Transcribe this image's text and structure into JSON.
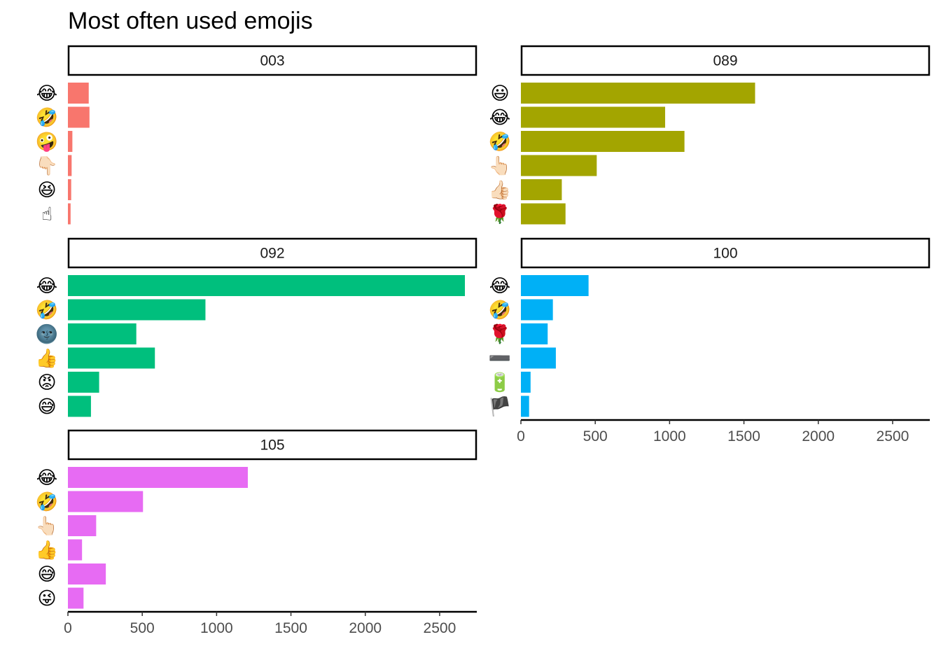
{
  "chart_data": {
    "type": "bar",
    "orientation": "horizontal",
    "title": "Most often used emojis",
    "xlabel": "",
    "ylabel": "",
    "xlim": [
      0,
      2750
    ],
    "x_ticks": [
      "0",
      "500",
      "1000",
      "1500",
      "2000",
      "2500"
    ],
    "grid": false,
    "legend": "none",
    "panels": [
      {
        "name": "003",
        "color": "#F8766D",
        "categories": [
          "😂",
          "🤣",
          "🤪",
          "👇🏻",
          "😆",
          "☝"
        ],
        "values": [
          140,
          145,
          30,
          25,
          22,
          18
        ]
      },
      {
        "name": "089",
        "color": "#A3A500",
        "categories": [
          "😃",
          "😂",
          "🤣",
          "👆🏻",
          "👍🏻",
          "🌹"
        ],
        "values": [
          1575,
          970,
          1100,
          510,
          275,
          300
        ]
      },
      {
        "name": "092",
        "color": "#00BF7D",
        "categories": [
          "😂",
          "🤣",
          "🌚",
          "👍",
          "😡",
          "😅"
        ],
        "values": [
          2670,
          925,
          460,
          585,
          210,
          155
        ]
      },
      {
        "name": "100",
        "color": "#00B0F6",
        "categories": [
          "😂",
          "🤣",
          "🌹",
          "➖",
          "🔋",
          "🏴"
        ],
        "values": [
          455,
          215,
          180,
          235,
          65,
          55
        ]
      },
      {
        "name": "105",
        "color": "#E76BF3",
        "categories": [
          "😂",
          "🤣",
          "👆🏻",
          "👍",
          "😅",
          "😜"
        ],
        "values": [
          1210,
          505,
          190,
          95,
          255,
          105
        ]
      }
    ]
  }
}
